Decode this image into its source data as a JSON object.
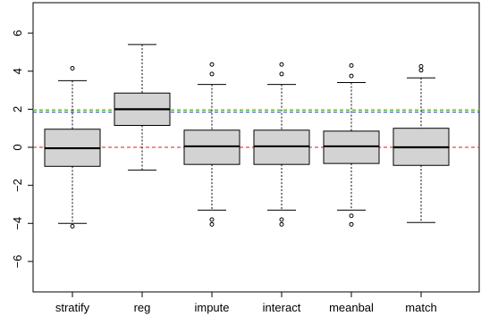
{
  "chart_data": {
    "type": "boxplot",
    "title": "",
    "xlabel": "",
    "ylabel": "",
    "ylim": [
      -7.6,
      7.6
    ],
    "y_ticks": [
      -6,
      -4,
      -2,
      0,
      2,
      4,
      6
    ],
    "y_tick_labels": [
      "−6",
      "−4",
      "−2",
      "0",
      "2",
      "4",
      "6"
    ],
    "categories": [
      "stratify",
      "reg",
      "impute",
      "interact",
      "meanbal",
      "match"
    ],
    "boxes": [
      {
        "name": "stratify",
        "whisker_low": -4.0,
        "q1": -1.0,
        "median": -0.05,
        "q3": 0.95,
        "whisker_high": 3.5,
        "outliers": [
          4.15,
          -4.15
        ]
      },
      {
        "name": "reg",
        "whisker_low": -1.2,
        "q1": 1.15,
        "median": 2.0,
        "q3": 2.85,
        "whisker_high": 5.4,
        "outliers": []
      },
      {
        "name": "impute",
        "whisker_low": -3.3,
        "q1": -0.9,
        "median": 0.05,
        "q3": 0.9,
        "whisker_high": 3.3,
        "outliers": [
          4.35,
          3.85,
          -3.8,
          -4.05
        ]
      },
      {
        "name": "interact",
        "whisker_low": -3.3,
        "q1": -0.9,
        "median": 0.05,
        "q3": 0.9,
        "whisker_high": 3.3,
        "outliers": [
          4.35,
          3.85,
          -3.8,
          -4.05
        ]
      },
      {
        "name": "meanbal",
        "whisker_low": -3.3,
        "q1": -0.85,
        "median": 0.05,
        "q3": 0.85,
        "whisker_high": 3.4,
        "outliers": [
          4.3,
          3.75,
          -3.6,
          -4.05
        ]
      },
      {
        "name": "match",
        "whisker_low": -3.95,
        "q1": -0.95,
        "median": 0.0,
        "q3": 1.0,
        "whisker_high": 3.65,
        "outliers": [
          4.25,
          4.05
        ]
      }
    ],
    "reference_lines": [
      {
        "value": 0,
        "color": "#e41a1c"
      },
      {
        "value": 1.85,
        "color": "#1f3fbf"
      },
      {
        "value": 1.95,
        "color": "#2ca02c"
      },
      {
        "value": 2.0,
        "color": "#f2e030"
      }
    ],
    "colors": {
      "box_fill": "#d3d3d3",
      "box_stroke": "#000000"
    }
  }
}
